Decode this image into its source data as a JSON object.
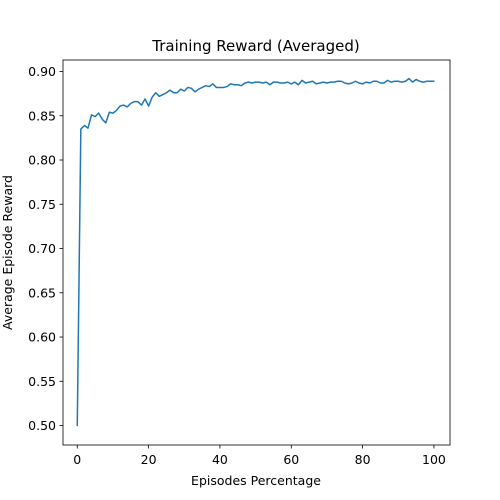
{
  "chart_data": {
    "type": "line",
    "title": "Training Reward (Averaged)",
    "xlabel": "Episodes Percentage",
    "ylabel": "Average Episode Reward",
    "xlim": [
      -4,
      104.5
    ],
    "ylim": [
      0.478,
      0.913
    ],
    "x_ticks": [
      0,
      20,
      40,
      60,
      80,
      100
    ],
    "x_tick_labels": [
      "0",
      "20",
      "40",
      "60",
      "80",
      "100"
    ],
    "y_ticks": [
      0.5,
      0.55,
      0.6,
      0.65,
      0.7,
      0.75,
      0.8,
      0.85,
      0.9
    ],
    "y_tick_labels": [
      "0.50",
      "0.55",
      "0.60",
      "0.65",
      "0.70",
      "0.75",
      "0.80",
      "0.85",
      "0.90"
    ],
    "grid": false,
    "line_color": "#1f77b4",
    "series": [
      {
        "x": [
          0,
          1,
          2,
          3,
          4,
          5,
          6,
          7,
          8,
          9,
          10,
          11,
          12,
          13,
          14,
          15,
          16,
          17,
          18,
          19,
          20,
          21,
          22,
          23,
          24,
          25,
          26,
          27,
          28,
          29,
          30,
          31,
          32,
          33,
          34,
          35,
          36,
          37,
          38,
          39,
          40,
          41,
          42,
          43,
          44,
          45,
          46,
          47,
          48,
          49,
          50,
          51,
          52,
          53,
          54,
          55,
          56,
          57,
          58,
          59,
          60,
          61,
          62,
          63,
          64,
          65,
          66,
          67,
          68,
          69,
          70,
          71,
          72,
          73,
          74,
          75,
          76,
          77,
          78,
          79,
          80,
          81,
          82,
          83,
          84,
          85,
          86,
          87,
          88,
          89,
          90,
          91,
          92,
          93,
          94,
          95,
          96,
          97,
          98,
          99,
          100
        ],
        "values": [
          0.5,
          0.835,
          0.839,
          0.836,
          0.851,
          0.849,
          0.853,
          0.846,
          0.842,
          0.854,
          0.853,
          0.856,
          0.861,
          0.862,
          0.86,
          0.864,
          0.866,
          0.866,
          0.862,
          0.869,
          0.861,
          0.871,
          0.876,
          0.872,
          0.874,
          0.876,
          0.879,
          0.876,
          0.876,
          0.88,
          0.878,
          0.882,
          0.881,
          0.877,
          0.88,
          0.882,
          0.884,
          0.883,
          0.886,
          0.882,
          0.882,
          0.882,
          0.883,
          0.886,
          0.885,
          0.885,
          0.884,
          0.887,
          0.888,
          0.887,
          0.888,
          0.888,
          0.887,
          0.888,
          0.885,
          0.888,
          0.888,
          0.887,
          0.887,
          0.888,
          0.886,
          0.888,
          0.885,
          0.89,
          0.887,
          0.888,
          0.889,
          0.886,
          0.887,
          0.888,
          0.887,
          0.888,
          0.888,
          0.889,
          0.889,
          0.887,
          0.886,
          0.887,
          0.889,
          0.887,
          0.886,
          0.888,
          0.887,
          0.889,
          0.889,
          0.887,
          0.887,
          0.89,
          0.888,
          0.889,
          0.889,
          0.888,
          0.889,
          0.892,
          0.888,
          0.891,
          0.889,
          0.888,
          0.889,
          0.889,
          0.889
        ]
      }
    ]
  }
}
